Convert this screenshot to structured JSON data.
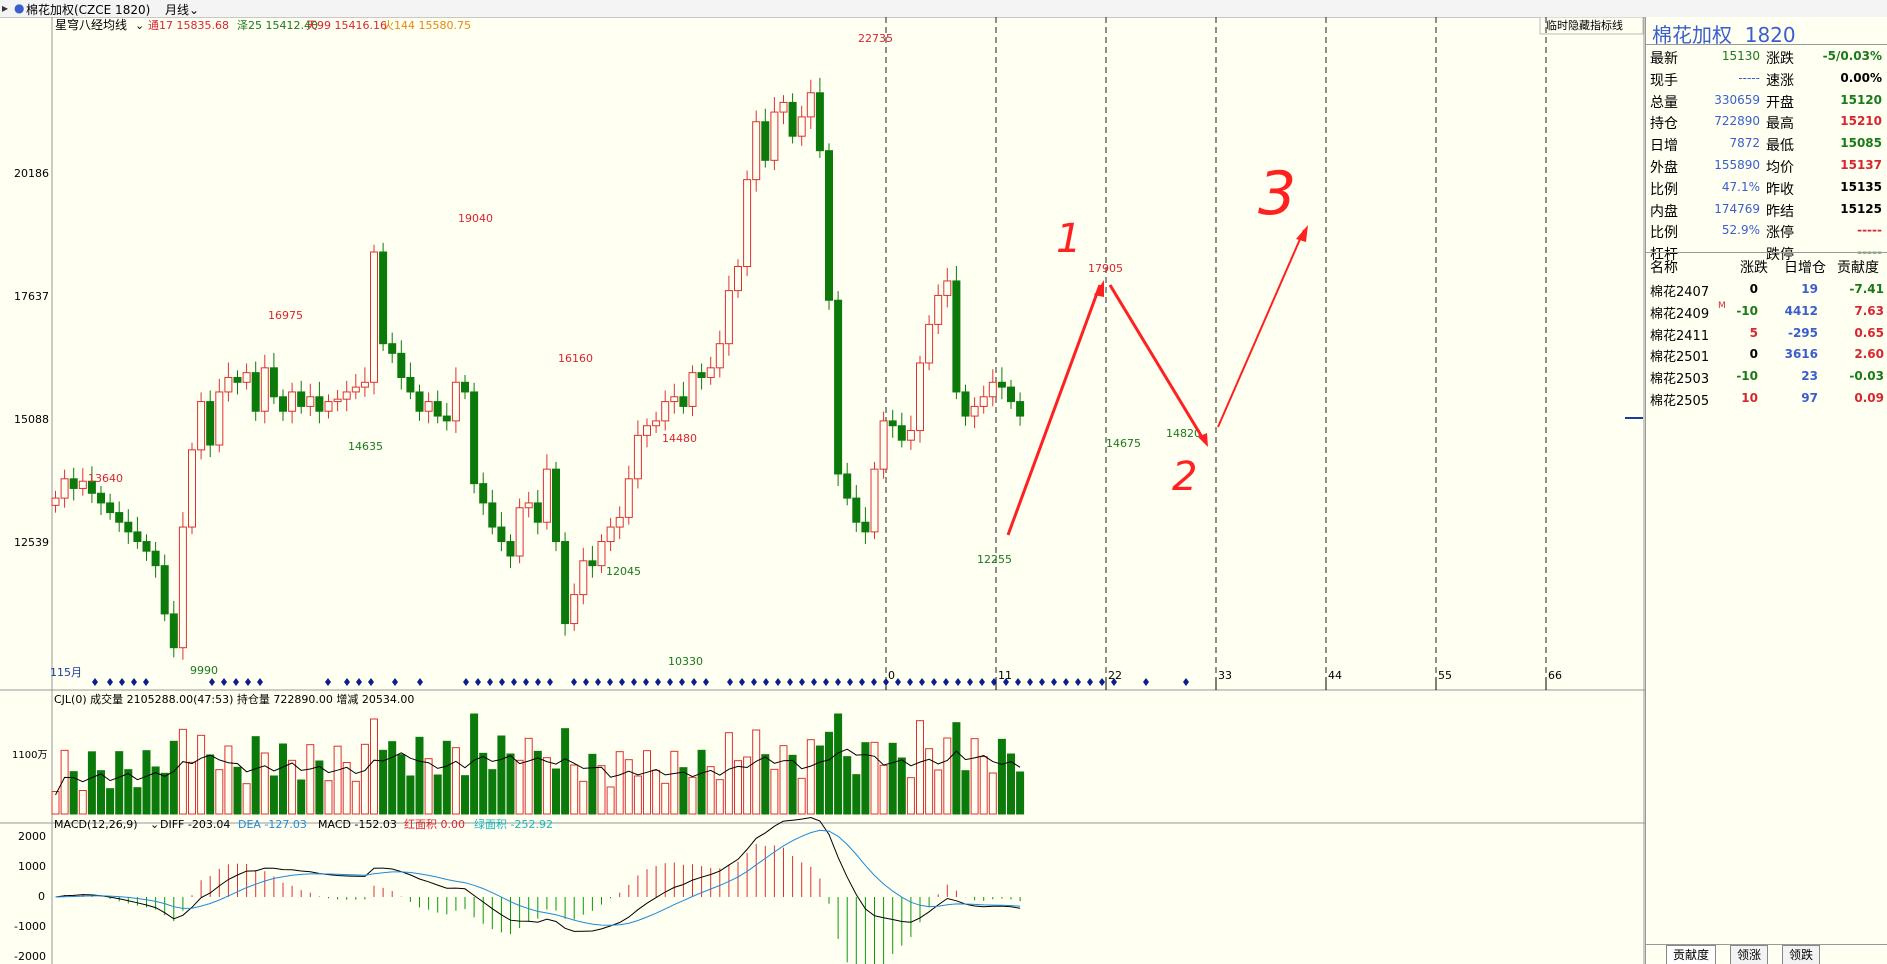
{
  "window": {
    "title": "棉花加权(CZCE 1820)",
    "period": "月线"
  },
  "indicator_bar": {
    "name": "星穹八经均线",
    "items": [
      {
        "label": "通17 15835.68",
        "color": "#d8262f"
      },
      {
        "label": "泽25 15412.40",
        "color": "#1a7a1a"
      },
      {
        "label": "天99 15416.16",
        "color": "#d8262f"
      },
      {
        "label": "火144 15580.75",
        "color": "#e8880f"
      }
    ],
    "hide_button": "临时隐藏指标线"
  },
  "main_chart": {
    "y_ticks": [
      "20186",
      "17637",
      "15088",
      "12539"
    ],
    "price_labels": [
      {
        "text": "13640",
        "color": "#d8262f"
      },
      {
        "text": "9990",
        "color": "#1a7a1a"
      },
      {
        "text": "16975",
        "color": "#d8262f"
      },
      {
        "text": "14635",
        "color": "#1a7a1a"
      },
      {
        "text": "19040",
        "color": "#d8262f"
      },
      {
        "text": "16160",
        "color": "#d8262f"
      },
      {
        "text": "12045",
        "color": "#1a7a1a"
      },
      {
        "text": "14480",
        "color": "#d8262f"
      },
      {
        "text": "10330",
        "color": "#1a7a1a"
      },
      {
        "text": "22735",
        "color": "#d8262f"
      },
      {
        "text": "12255",
        "color": "#1a7a1a"
      },
      {
        "text": "17905",
        "color": "#d8262f"
      },
      {
        "text": "14675",
        "color": "#1a7a1a"
      },
      {
        "text": "14820",
        "color": "#1a7a1a"
      }
    ],
    "start_label": "115月",
    "time_markers": [
      "0",
      "11",
      "22",
      "33",
      "44",
      "55",
      "66"
    ],
    "annotations": [
      "1",
      "2",
      "3"
    ]
  },
  "volume_pane": {
    "header": "CJL(0)  成交量 2105288.00(47:53)  持仓量 722890.00  增减 20534.00",
    "y_label": "1100万"
  },
  "macd_pane": {
    "name": "MACD(12,26,9)",
    "diff": "DIFF -203.04",
    "dea": "DEA -127.03",
    "macd": "MACD -152.03",
    "red_area": "红面积  0.00",
    "green_area": "绿面积  -252.92",
    "y_ticks": [
      "2000",
      "1000",
      "0",
      "-1000",
      "-2000"
    ]
  },
  "quote_panel": {
    "title": "棉花加权",
    "code": "1820",
    "rows": [
      {
        "l1": "最新",
        "v1": "15130",
        "c1": "#1a7a1a",
        "l2": "涨跌",
        "v2": "-5/0.03%",
        "c2": "#1a7a1a"
      },
      {
        "l1": "现手",
        "v1": "-----",
        "c1": "#3a5fcd",
        "l2": "速涨",
        "v2": "0.00%",
        "c2": "#000000"
      },
      {
        "l1": "总量",
        "v1": "330659",
        "c1": "#3a5fcd",
        "l2": "开盘",
        "v2": "15120",
        "c2": "#1a7a1a"
      },
      {
        "l1": "持仓",
        "v1": "722890",
        "c1": "#3a5fcd",
        "l2": "最高",
        "v2": "15210",
        "c2": "#d8262f"
      },
      {
        "l1": "日增",
        "v1": "7872",
        "c1": "#3a5fcd",
        "l2": "最低",
        "v2": "15085",
        "c2": "#1a7a1a"
      },
      {
        "l1": "外盘",
        "v1": "155890",
        "c1": "#3a5fcd",
        "l2": "均价",
        "v2": "15137",
        "c2": "#d8262f"
      },
      {
        "l1": "比例",
        "v1": "47.1%",
        "c1": "#3a5fcd",
        "l2": "昨收",
        "v2": "15135",
        "c2": "#000000"
      },
      {
        "l1": "内盘",
        "v1": "174769",
        "c1": "#3a5fcd",
        "l2": "昨结",
        "v2": "15125",
        "c2": "#000000"
      },
      {
        "l1": "比例",
        "v1": "52.9%",
        "c1": "#3a5fcd",
        "l2": "涨停",
        "v2": "-----",
        "c2": "#d8262f"
      },
      {
        "l1": "杠杆",
        "v1": "-----",
        "c1": "#3a5fcd",
        "l2": "跌停",
        "v2": "-----",
        "c2": "#1a7a1a"
      }
    ],
    "contribution_header": [
      "名称",
      "涨跌",
      "日增仓",
      "贡献度"
    ],
    "contracts": [
      {
        "name": "棉花2407",
        "mark": "",
        "change": "0",
        "cc": "#000000",
        "oi": "19",
        "contrib": "-7.41",
        "pc": "#1a7a1a"
      },
      {
        "name": "棉花2409",
        "mark": "M",
        "change": "-10",
        "cc": "#1a7a1a",
        "oi": "4412",
        "contrib": "7.63",
        "pc": "#d8262f"
      },
      {
        "name": "棉花2411",
        "mark": "",
        "change": "5",
        "cc": "#d8262f",
        "oi": "-295",
        "contrib": "0.65",
        "pc": "#d8262f"
      },
      {
        "name": "棉花2501",
        "mark": "",
        "change": "0",
        "cc": "#000000",
        "oi": "3616",
        "contrib": "2.60",
        "pc": "#d8262f"
      },
      {
        "name": "棉花2503",
        "mark": "",
        "change": "-10",
        "cc": "#1a7a1a",
        "oi": "23",
        "contrib": "-0.03",
        "pc": "#1a7a1a"
      },
      {
        "name": "棉花2505",
        "mark": "",
        "change": "10",
        "cc": "#d8262f",
        "oi": "97",
        "contrib": "0.09",
        "pc": "#d8262f"
      }
    ],
    "tabs": [
      "贡献度",
      "领涨",
      "领跌"
    ]
  },
  "colors": {
    "up": "#e03030",
    "down": "#0b7a0b",
    "diamond": "#0d1e8c",
    "arrow": "#ff2020"
  }
}
